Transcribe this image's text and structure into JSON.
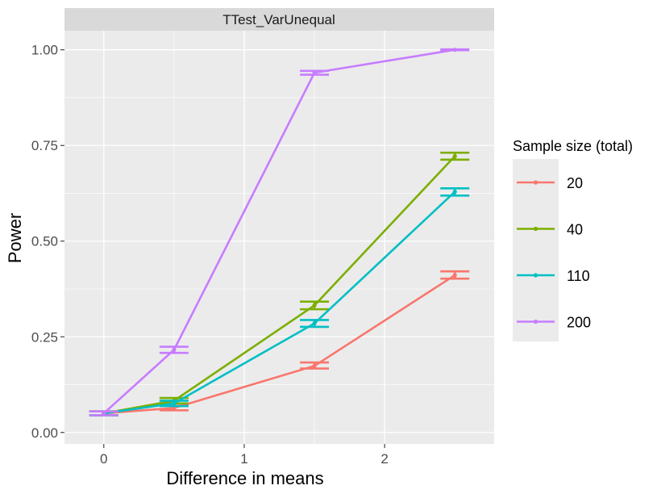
{
  "chart_data": {
    "type": "line",
    "facet_title": "TTest_VarUnequal",
    "xlabel": "Difference in means",
    "ylabel": "Power",
    "xlim": [
      -0.28,
      2.78
    ],
    "ylim": [
      -0.03,
      1.05
    ],
    "x_ticks": [
      0,
      1,
      2
    ],
    "x_tick_labels": [
      "0",
      "1",
      "2"
    ],
    "y_ticks": [
      0,
      0.25,
      0.5,
      0.75,
      1.0
    ],
    "y_tick_labels": [
      "0.00",
      "0.25",
      "0.50",
      "0.75",
      "1.00"
    ],
    "x": [
      0,
      0.5,
      1.5,
      2.5
    ],
    "grid": true,
    "legend_title": "Sample size (total)",
    "legend_position": "right",
    "error_bars": true,
    "series": [
      {
        "name": "20",
        "color": "#F8766D",
        "values": [
          0.05,
          0.064,
          0.174,
          0.411
        ],
        "ci_low": [
          0.045,
          0.058,
          0.167,
          0.402
        ],
        "ci_high": [
          0.055,
          0.07,
          0.183,
          0.421
        ]
      },
      {
        "name": "40",
        "color": "#7CAE00",
        "values": [
          0.05,
          0.083,
          0.332,
          0.722
        ],
        "ci_low": [
          0.045,
          0.076,
          0.322,
          0.713
        ],
        "ci_high": [
          0.055,
          0.09,
          0.342,
          0.731
        ]
      },
      {
        "name": "110",
        "color": "#00BFC4",
        "values": [
          0.05,
          0.076,
          0.285,
          0.629
        ],
        "ci_low": [
          0.045,
          0.069,
          0.276,
          0.619
        ],
        "ci_high": [
          0.055,
          0.083,
          0.294,
          0.638
        ]
      },
      {
        "name": "200",
        "color": "#C77CFF",
        "values": [
          0.05,
          0.216,
          0.94,
          1.0
        ],
        "ci_low": [
          0.045,
          0.208,
          0.935,
          0.999
        ],
        "ci_high": [
          0.055,
          0.224,
          0.945,
          1.001
        ]
      }
    ]
  }
}
